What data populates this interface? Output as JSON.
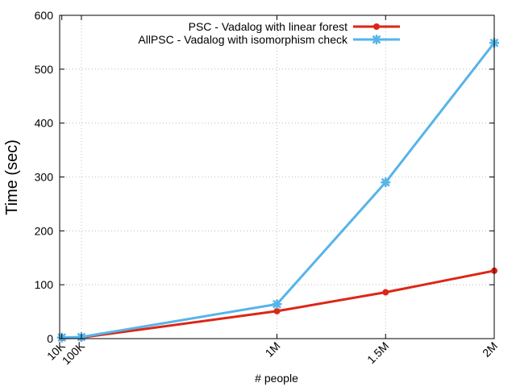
{
  "chart_data": {
    "type": "line",
    "title": "",
    "xlabel": "# people",
    "ylabel": "Time (sec)",
    "x": [
      10000,
      100000,
      1000000,
      1500000,
      2000000
    ],
    "x_tick_labels": [
      "10K",
      "100K",
      "1M",
      "1.5M",
      "2M"
    ],
    "xlim": [
      0,
      2000000
    ],
    "ylim": [
      0,
      600
    ],
    "y_ticks": [
      0,
      100,
      200,
      300,
      400,
      500,
      600
    ],
    "grid": true,
    "legend_position": "top-right",
    "series": [
      {
        "name": "PSC - Vadalog with linear forest",
        "color": "#dd2616",
        "marker": "circle",
        "values": [
          1,
          2,
          51,
          86,
          126
        ]
      },
      {
        "name": "AllPSC - Vadalog with isomorphism check",
        "color": "#56b4e9",
        "marker": "asterisk",
        "values": [
          2,
          3,
          64,
          290,
          549
        ]
      }
    ]
  }
}
